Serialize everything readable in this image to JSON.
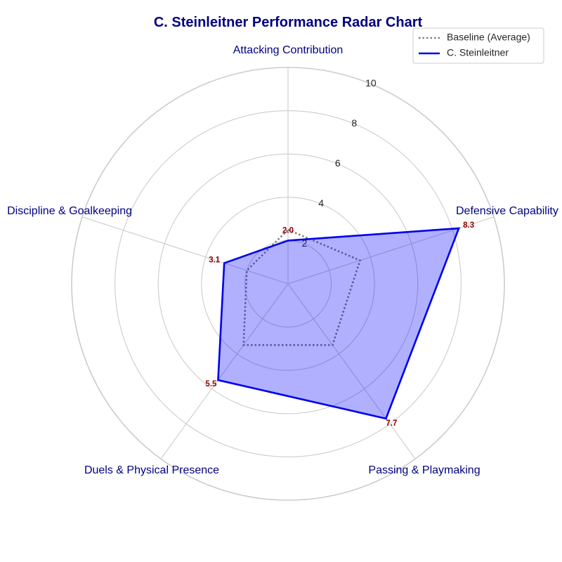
{
  "chart_data": {
    "type": "radar",
    "title": "C. Steinleitner Performance Radar Chart",
    "categories": [
      "Attacking Contribution",
      "Defensive Capability",
      "Passing & Playmaking",
      "Duels & Physical Presence",
      "Discipline & Goalkeeping"
    ],
    "rlim": [
      0,
      10
    ],
    "rticks": [
      2,
      4,
      6,
      8,
      10
    ],
    "series": [
      {
        "name": "Baseline (Average)",
        "values": [
          2.5,
          3.5,
          3.5,
          3.5,
          2.0
        ],
        "style": "dotted",
        "color": "#808080"
      },
      {
        "name": "C. Steinleitner",
        "values": [
          2.0,
          8.3,
          7.7,
          5.5,
          3.1
        ],
        "value_labels": [
          "2.0",
          "8.3",
          "7.7",
          "5.5",
          "3.1"
        ],
        "style": "solid",
        "color": "#0000ee",
        "fill": "#0000ff"
      }
    ],
    "legend_position": "top-right",
    "colors": {
      "title": "#000080",
      "axis_label": "#000080",
      "data_label": "#8b0000",
      "grid": "#cccccc"
    }
  }
}
